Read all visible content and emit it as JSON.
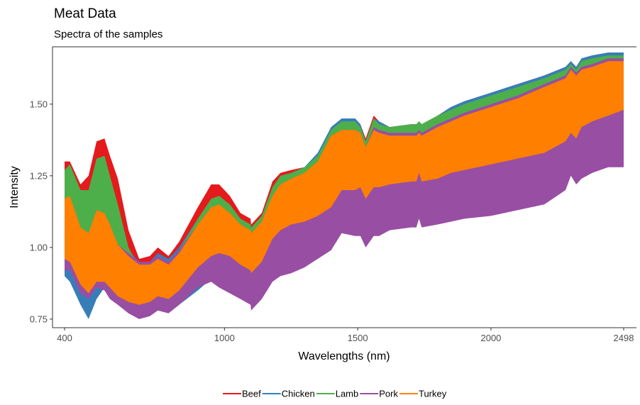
{
  "chart_data": {
    "type": "area",
    "title": "Meat Data",
    "subtitle": "Spectra of the samples",
    "xlabel": "Wavelengths (nm)",
    "ylabel": "Intensity",
    "xlim": [
      400,
      2498
    ],
    "ylim": [
      0.72,
      1.7
    ],
    "x_ticks": [
      400,
      1000,
      1500,
      2000,
      2498
    ],
    "x_tick_labels": [
      "400",
      "1000",
      "1500",
      "2000",
      "2498"
    ],
    "y_ticks": [
      0.75,
      1.0,
      1.25,
      1.5
    ],
    "y_tick_labels": [
      "0.75",
      "1.00",
      "1.25",
      "1.50"
    ],
    "grid": false,
    "legend_position": "bottom",
    "x": [
      400,
      420,
      460,
      490,
      520,
      550,
      570,
      600,
      640,
      680,
      720,
      750,
      790,
      830,
      900,
      950,
      980,
      1020,
      1060,
      1098,
      1100,
      1140,
      1180,
      1210,
      1250,
      1300,
      1350,
      1400,
      1440,
      1490,
      1510,
      1530,
      1560,
      1580,
      1620,
      1700,
      1720,
      1730,
      1740,
      1800,
      1850,
      1900,
      2000,
      2100,
      2200,
      2280,
      2300,
      2320,
      2340,
      2380,
      2440,
      2498
    ],
    "series": [
      {
        "name": "Beef",
        "color": "#E41A1C",
        "min": [
          0.95,
          0.96,
          0.9,
          0.88,
          0.9,
          0.94,
          0.93,
          0.88,
          0.84,
          0.82,
          0.83,
          0.87,
          0.88,
          0.92,
          1.0,
          1.04,
          1.06,
          1.06,
          1.04,
          1.02,
          1.05,
          1.08,
          1.16,
          1.19,
          1.2,
          1.21,
          1.22,
          1.25,
          1.34,
          1.34,
          1.37,
          1.34,
          1.37,
          1.37,
          1.37,
          1.38,
          1.38,
          1.4,
          1.38,
          1.4,
          1.43,
          1.45,
          1.47,
          1.49,
          1.51,
          1.53,
          1.55,
          1.53,
          1.57,
          1.58,
          1.6,
          1.62
        ],
        "max": [
          1.3,
          1.3,
          1.22,
          1.25,
          1.37,
          1.38,
          1.32,
          1.24,
          1.06,
          0.96,
          0.97,
          1.0,
          0.97,
          1.02,
          1.14,
          1.22,
          1.22,
          1.18,
          1.12,
          1.1,
          1.08,
          1.12,
          1.23,
          1.26,
          1.27,
          1.28,
          1.32,
          1.4,
          1.45,
          1.45,
          1.43,
          1.38,
          1.46,
          1.44,
          1.42,
          1.43,
          1.43,
          1.44,
          1.43,
          1.46,
          1.49,
          1.51,
          1.54,
          1.57,
          1.6,
          1.63,
          1.65,
          1.63,
          1.66,
          1.67,
          1.68,
          1.68
        ]
      },
      {
        "name": "Chicken",
        "color": "#377EB8",
        "min": [
          0.9,
          0.88,
          0.8,
          0.75,
          0.82,
          0.86,
          0.84,
          0.8,
          0.78,
          0.77,
          0.78,
          0.8,
          0.79,
          0.8,
          0.85,
          0.89,
          0.9,
          0.89,
          0.86,
          0.84,
          0.84,
          0.86,
          0.92,
          0.94,
          0.95,
          0.97,
          0.99,
          1.02,
          1.08,
          1.07,
          1.08,
          1.04,
          1.07,
          1.07,
          1.08,
          1.09,
          1.09,
          1.12,
          1.09,
          1.11,
          1.13,
          1.14,
          1.16,
          1.18,
          1.2,
          1.24,
          1.28,
          1.25,
          1.29,
          1.3,
          1.32,
          1.32
        ],
        "max": [
          1.24,
          1.25,
          1.14,
          1.1,
          1.14,
          1.13,
          1.1,
          1.03,
          0.99,
          0.95,
          0.95,
          0.98,
          0.96,
          1.0,
          1.1,
          1.16,
          1.17,
          1.14,
          1.09,
          1.07,
          1.07,
          1.1,
          1.2,
          1.24,
          1.26,
          1.28,
          1.33,
          1.42,
          1.45,
          1.45,
          1.43,
          1.37,
          1.45,
          1.44,
          1.42,
          1.43,
          1.43,
          1.44,
          1.43,
          1.46,
          1.49,
          1.51,
          1.54,
          1.57,
          1.6,
          1.63,
          1.65,
          1.63,
          1.66,
          1.67,
          1.68,
          1.68
        ]
      },
      {
        "name": "Lamb",
        "color": "#4DAF4A",
        "min": [
          1.0,
          1.0,
          0.98,
          0.94,
          0.96,
          1.0,
          0.98,
          0.94,
          0.9,
          0.88,
          0.88,
          0.9,
          0.9,
          0.94,
          1.02,
          1.06,
          1.07,
          1.06,
          1.04,
          1.02,
          1.04,
          1.08,
          1.15,
          1.18,
          1.19,
          1.2,
          1.22,
          1.25,
          1.33,
          1.33,
          1.36,
          1.32,
          1.36,
          1.36,
          1.36,
          1.37,
          1.37,
          1.39,
          1.37,
          1.39,
          1.42,
          1.44,
          1.46,
          1.48,
          1.5,
          1.52,
          1.55,
          1.52,
          1.56,
          1.57,
          1.59,
          1.61
        ],
        "max": [
          1.27,
          1.29,
          1.2,
          1.2,
          1.31,
          1.32,
          1.25,
          1.15,
          1.0,
          0.93,
          0.94,
          0.97,
          0.95,
          0.99,
          1.1,
          1.17,
          1.18,
          1.15,
          1.1,
          1.08,
          1.07,
          1.11,
          1.21,
          1.25,
          1.26,
          1.28,
          1.32,
          1.41,
          1.44,
          1.44,
          1.42,
          1.37,
          1.45,
          1.43,
          1.42,
          1.43,
          1.43,
          1.44,
          1.43,
          1.46,
          1.48,
          1.5,
          1.53,
          1.56,
          1.59,
          1.62,
          1.64,
          1.62,
          1.65,
          1.66,
          1.67,
          1.67
        ]
      },
      {
        "name": "Pork",
        "color": "#984EA3",
        "min": [
          0.92,
          0.92,
          0.84,
          0.82,
          0.86,
          0.85,
          0.82,
          0.8,
          0.77,
          0.75,
          0.76,
          0.78,
          0.77,
          0.8,
          0.86,
          0.88,
          0.86,
          0.84,
          0.82,
          0.8,
          0.78,
          0.82,
          0.88,
          0.9,
          0.91,
          0.93,
          0.96,
          0.99,
          1.05,
          1.04,
          1.04,
          1.0,
          1.04,
          1.04,
          1.06,
          1.07,
          1.07,
          1.1,
          1.07,
          1.08,
          1.09,
          1.1,
          1.11,
          1.13,
          1.15,
          1.2,
          1.25,
          1.22,
          1.24,
          1.26,
          1.28,
          1.28
        ],
        "max": [
          1.16,
          1.17,
          1.06,
          1.04,
          1.13,
          1.12,
          1.08,
          1.01,
          0.98,
          0.95,
          0.95,
          0.97,
          0.95,
          0.99,
          1.08,
          1.14,
          1.14,
          1.12,
          1.08,
          1.06,
          1.05,
          1.09,
          1.18,
          1.22,
          1.24,
          1.26,
          1.3,
          1.39,
          1.41,
          1.41,
          1.4,
          1.35,
          1.42,
          1.41,
          1.4,
          1.4,
          1.4,
          1.41,
          1.4,
          1.43,
          1.45,
          1.47,
          1.5,
          1.53,
          1.57,
          1.6,
          1.63,
          1.61,
          1.63,
          1.64,
          1.66,
          1.66
        ]
      },
      {
        "name": "Turkey",
        "color": "#FF7F00",
        "min": [
          0.96,
          0.95,
          0.87,
          0.84,
          0.88,
          0.88,
          0.86,
          0.83,
          0.81,
          0.8,
          0.81,
          0.83,
          0.82,
          0.85,
          0.93,
          0.97,
          0.98,
          0.97,
          0.94,
          0.92,
          0.91,
          0.95,
          1.03,
          1.06,
          1.08,
          1.09,
          1.11,
          1.14,
          1.2,
          1.2,
          1.21,
          1.17,
          1.21,
          1.21,
          1.22,
          1.23,
          1.23,
          1.26,
          1.23,
          1.24,
          1.26,
          1.27,
          1.29,
          1.31,
          1.33,
          1.37,
          1.4,
          1.38,
          1.42,
          1.44,
          1.46,
          1.48
        ],
        "max": [
          1.17,
          1.18,
          1.07,
          1.05,
          1.13,
          1.12,
          1.08,
          1.01,
          0.97,
          0.94,
          0.94,
          0.96,
          0.94,
          0.98,
          1.08,
          1.14,
          1.15,
          1.12,
          1.08,
          1.06,
          1.05,
          1.09,
          1.18,
          1.22,
          1.24,
          1.26,
          1.3,
          1.39,
          1.41,
          1.41,
          1.4,
          1.35,
          1.41,
          1.4,
          1.39,
          1.39,
          1.39,
          1.4,
          1.39,
          1.42,
          1.44,
          1.46,
          1.49,
          1.52,
          1.56,
          1.59,
          1.62,
          1.6,
          1.62,
          1.63,
          1.65,
          1.65
        ]
      }
    ]
  }
}
